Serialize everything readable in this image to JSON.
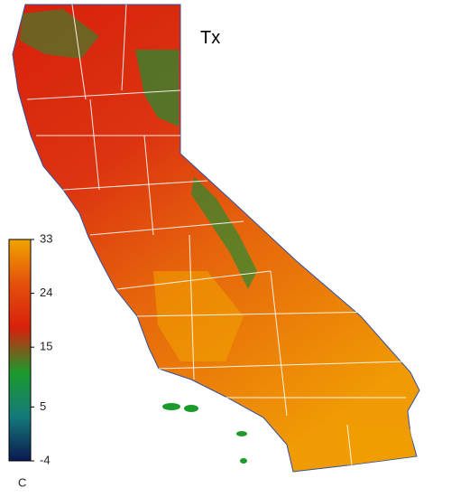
{
  "map": {
    "title": "Tx",
    "colorbar": {
      "lim": [
        -4,
        33
      ],
      "ticks": [
        33,
        24,
        15,
        5,
        -4
      ],
      "unit": "C",
      "colors": [
        "#0a1850",
        "#147a7a",
        "#1c9a2c",
        "#d8200c",
        "#e4500c",
        "#f0a400"
      ]
    }
  }
}
